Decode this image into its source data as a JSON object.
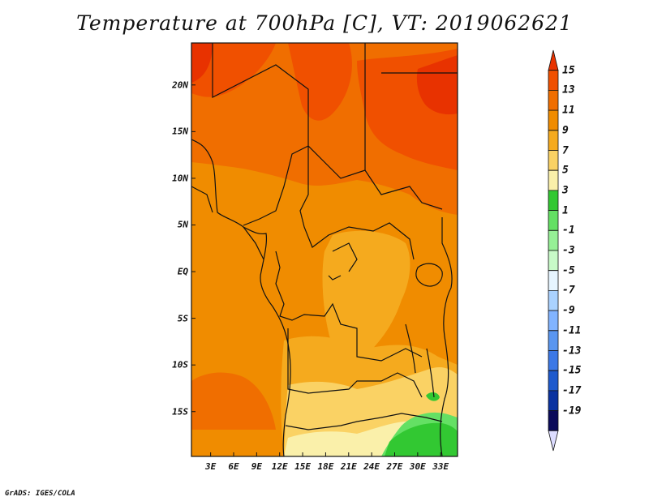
{
  "title": "Temperature at 700hPa [C], VT: 2019062621",
  "credit": "GrADS: IGES/COLA",
  "map": {
    "lat_labels": [
      "20N",
      "15N",
      "10N",
      "5N",
      "EQ",
      "5S",
      "10S",
      "15S"
    ],
    "lon_labels": [
      "3E",
      "6E",
      "9E",
      "12E",
      "15E",
      "18E",
      "21E",
      "24E",
      "27E",
      "30E",
      "33E"
    ],
    "lat_range": [
      -19.8,
      24.5
    ],
    "lon_range": [
      0.5,
      35.2
    ],
    "base_color": "#f08c00"
  },
  "colorbar": {
    "labels": [
      "15",
      "13",
      "11",
      "9",
      "7",
      "5",
      "3",
      "1",
      "-1",
      "-3",
      "-5",
      "-7",
      "-9",
      "-11",
      "-13",
      "-15",
      "-17",
      "-19"
    ],
    "colors": [
      "#e83200",
      "#f05000",
      "#f06e00",
      "#f08c00",
      "#f5aa1e",
      "#fad264",
      "#faf0aa",
      "#32c832",
      "#64e064",
      "#96f096",
      "#c8fac8",
      "#e6f5ff",
      "#aad2ff",
      "#82b4ff",
      "#5a96f0",
      "#3c78e6",
      "#1e5acd",
      "#0a32a0",
      "#0a0a5a",
      "#dcdcff"
    ]
  }
}
